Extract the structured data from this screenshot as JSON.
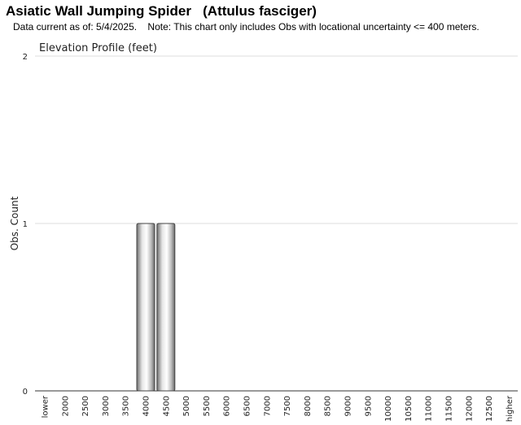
{
  "header": {
    "title": "Asiatic Wall Jumping Spider   (Attulus fasciger)",
    "subtitle": "Data current as of: 5/4/2025.    Note: This chart only includes Obs with locational uncertainty <= 400 meters."
  },
  "chart_data": {
    "type": "bar",
    "title": "Elevation Profile (feet)",
    "xlabel": "",
    "ylabel": "Obs. Count",
    "categories": [
      "lower",
      "2000",
      "2500",
      "3000",
      "3500",
      "4000",
      "4500",
      "5000",
      "5500",
      "6000",
      "6500",
      "7000",
      "7500",
      "8000",
      "8500",
      "9000",
      "9500",
      "10000",
      "10500",
      "11000",
      "11500",
      "12000",
      "12500",
      "higher"
    ],
    "values": [
      0,
      0,
      0,
      0,
      0,
      1,
      1,
      0,
      0,
      0,
      0,
      0,
      0,
      0,
      0,
      0,
      0,
      0,
      0,
      0,
      0,
      0,
      0,
      0
    ],
    "yticks": [
      0,
      1,
      2
    ],
    "ylim": [
      0,
      2
    ],
    "grid": true,
    "bar_color": "#a8a8a8"
  }
}
